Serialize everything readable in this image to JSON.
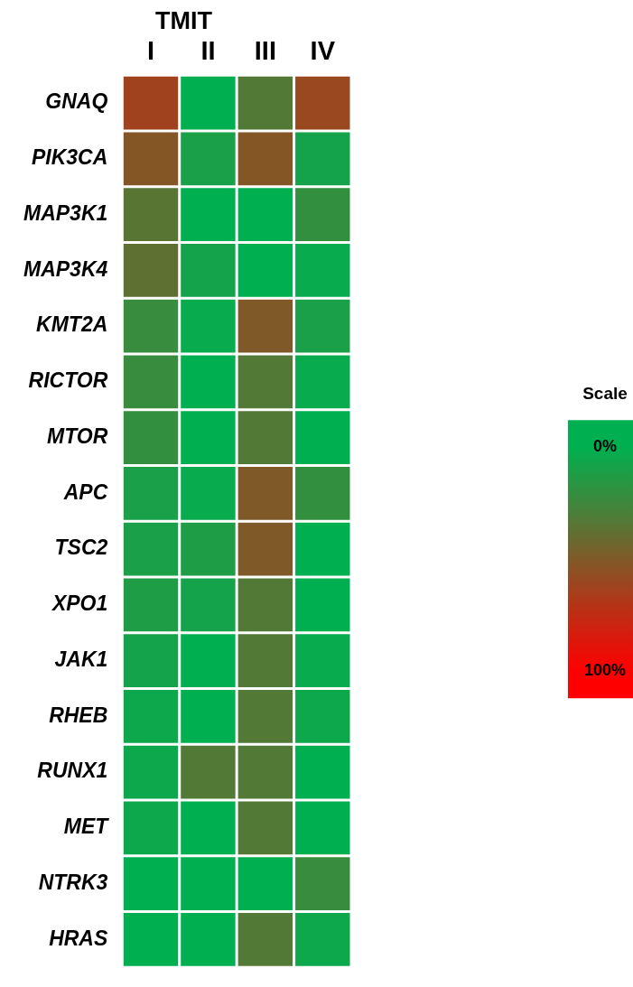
{
  "chart_data": {
    "type": "heatmap",
    "title": "TMIT",
    "clabel": "Scale",
    "categories": [
      "I",
      "II",
      "III",
      "IV"
    ],
    "y_categories": [
      "GNAQ",
      "PIK3CA",
      "MAP3K1",
      "MAP3K4",
      "KMT2A",
      "RICTOR",
      "MTOR",
      "APC",
      "TSC2",
      "XPO1",
      "JAK1",
      "RHEB",
      "RUNX1",
      "MET",
      "NTRK3",
      "HRAS"
    ],
    "cells": [
      [
        63,
        0,
        33,
        60
      ],
      [
        52,
        10,
        52,
        8
      ],
      [
        35,
        0,
        0,
        20
      ],
      [
        37,
        8,
        0,
        3
      ],
      [
        22,
        3,
        50,
        10
      ],
      [
        22,
        0,
        33,
        3
      ],
      [
        20,
        0,
        33,
        0
      ],
      [
        10,
        3,
        50,
        20
      ],
      [
        10,
        12,
        50,
        0
      ],
      [
        12,
        8,
        33,
        0
      ],
      [
        8,
        0,
        33,
        3
      ],
      [
        5,
        0,
        33,
        5
      ],
      [
        5,
        33,
        33,
        0
      ],
      [
        5,
        0,
        33,
        0
      ],
      [
        0,
        0,
        0,
        22
      ],
      [
        0,
        0,
        33,
        5
      ]
    ],
    "colors": [
      "#00b050",
      "#3f873c",
      "#7f5a28",
      "#c02c14",
      "#ff0000"
    ],
    "clim": [
      0,
      100
    ],
    "cticks": [
      {
        "value": 0,
        "label": "0%"
      },
      {
        "value": 100,
        "label": "100%"
      }
    ]
  }
}
